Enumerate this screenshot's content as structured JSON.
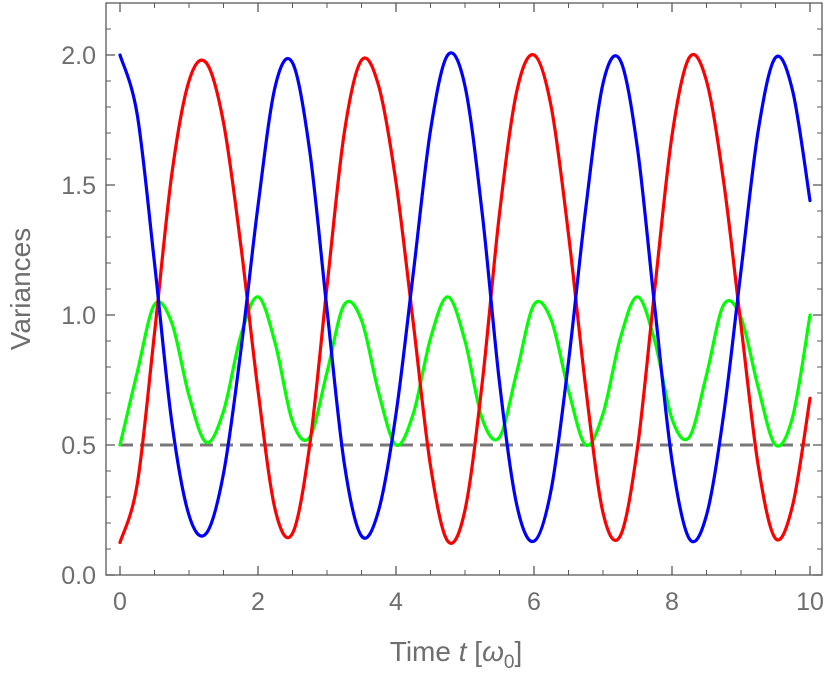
{
  "chart_data": {
    "type": "line",
    "title": "",
    "xlabel": {
      "prefix": "Time  ",
      "var": "t",
      "bracket_open": " [",
      "omega": "ω",
      "sub": "0",
      "bracket_close": "]"
    },
    "ylabel": "Variances",
    "xlim": [
      0,
      10
    ],
    "ylim": [
      0,
      2.2
    ],
    "xticks": [
      0,
      2,
      4,
      6,
      8,
      10
    ],
    "xtick_labels": [
      "0",
      "2",
      "4",
      "6",
      "8",
      "10"
    ],
    "yticks": [
      0,
      0.5,
      1,
      1.5,
      2
    ],
    "ytick_labels": [
      "0.0",
      "0.5",
      "1.0",
      "1.5",
      "2.0"
    ],
    "grid": false,
    "frame": true,
    "series": [
      {
        "color": "#0000ff",
        "style": "solid",
        "x": [
          0,
          0.25,
          0.5,
          0.75,
          1,
          1.25,
          1.5,
          1.75,
          2,
          2.25,
          2.5,
          2.75,
          3,
          3.25,
          3.5,
          3.75,
          4,
          4.25,
          4.5,
          4.75,
          5,
          5.25,
          5.5,
          5.75,
          6,
          6.25,
          6.5,
          6.75,
          7,
          7.25,
          7.5,
          7.75,
          8,
          8.25,
          8.5,
          8.75,
          9,
          9.25,
          9.5,
          9.75,
          10
        ],
        "values": [
          2.0,
          1.77,
          1.2,
          0.59,
          0.23,
          0.16,
          0.39,
          0.86,
          1.42,
          1.88,
          1.97,
          1.63,
          1.02,
          0.43,
          0.15,
          0.25,
          0.62,
          1.16,
          1.71,
          2.0,
          1.88,
          1.39,
          0.74,
          0.27,
          0.13,
          0.33,
          0.82,
          1.41,
          1.89,
          1.98,
          1.64,
          1.03,
          0.44,
          0.14,
          0.23,
          0.62,
          1.17,
          1.71,
          1.99,
          1.86,
          1.44
        ]
      },
      {
        "color": "#ff0000",
        "style": "solid",
        "x": [
          0,
          0.25,
          0.5,
          0.75,
          1,
          1.25,
          1.5,
          1.75,
          2,
          2.25,
          2.5,
          2.75,
          3,
          3.25,
          3.5,
          3.75,
          4,
          4.25,
          4.5,
          4.75,
          5,
          5.25,
          5.5,
          5.75,
          6,
          6.25,
          6.5,
          6.75,
          7,
          7.25,
          7.5,
          7.75,
          8,
          8.25,
          8.5,
          8.75,
          9,
          9.25,
          9.5,
          9.75,
          10
        ],
        "values": [
          0.125,
          0.35,
          0.93,
          1.54,
          1.9,
          1.97,
          1.74,
          1.27,
          0.71,
          0.25,
          0.16,
          0.5,
          1.11,
          1.7,
          1.98,
          1.88,
          1.51,
          0.97,
          0.42,
          0.13,
          0.25,
          0.74,
          1.39,
          1.86,
          2.0,
          1.8,
          1.31,
          0.72,
          0.24,
          0.15,
          0.49,
          1.1,
          1.69,
          1.99,
          1.9,
          1.51,
          0.96,
          0.42,
          0.14,
          0.27,
          0.68
        ]
      },
      {
        "color": "#00ff00",
        "style": "solid",
        "x": [
          0,
          0.25,
          0.5,
          0.75,
          1,
          1.25,
          1.5,
          1.75,
          2,
          2.25,
          2.5,
          2.75,
          3,
          3.25,
          3.5,
          3.75,
          4,
          4.25,
          4.5,
          4.75,
          5,
          5.25,
          5.5,
          5.75,
          6,
          6.25,
          6.5,
          6.75,
          7,
          7.25,
          7.5,
          7.75,
          8,
          8.25,
          8.5,
          8.75,
          9,
          9.25,
          9.5,
          9.75,
          10
        ],
        "values": [
          0.5,
          0.78,
          1.04,
          0.97,
          0.69,
          0.51,
          0.63,
          0.92,
          1.07,
          0.89,
          0.59,
          0.53,
          0.78,
          1.04,
          0.98,
          0.7,
          0.5,
          0.62,
          0.91,
          1.07,
          0.9,
          0.6,
          0.53,
          0.78,
          1.04,
          0.98,
          0.71,
          0.5,
          0.62,
          0.91,
          1.07,
          0.9,
          0.6,
          0.53,
          0.77,
          1.04,
          0.99,
          0.72,
          0.5,
          0.61,
          1.0
        ]
      },
      {
        "color": "#777777",
        "style": "dashed",
        "x": [
          0,
          10
        ],
        "values": [
          0.5,
          0.5
        ]
      }
    ]
  }
}
